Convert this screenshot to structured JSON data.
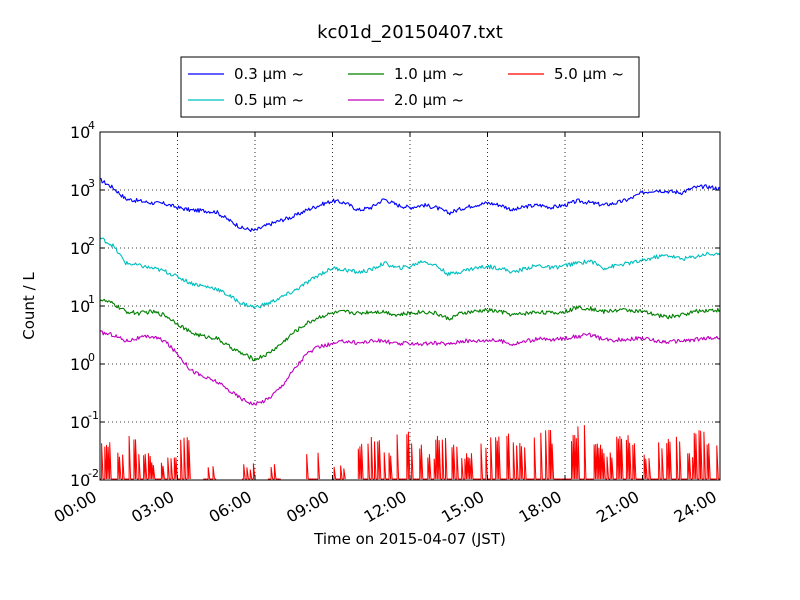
{
  "chart_data": {
    "type": "line",
    "title": "kc01d_20150407.txt",
    "xlabel": "Time on 2015-04-07 (JST)",
    "ylabel": "Count / L",
    "yscale": "log",
    "xlim": [
      0,
      24
    ],
    "ylim": [
      0.01,
      10000
    ],
    "grid": true,
    "legend_position": "top-center",
    "x_ticks": [
      {
        "value": 0,
        "label": "00:00"
      },
      {
        "value": 3,
        "label": "03:00"
      },
      {
        "value": 6,
        "label": "06:00"
      },
      {
        "value": 9,
        "label": "09:00"
      },
      {
        "value": 12,
        "label": "12:00"
      },
      {
        "value": 15,
        "label": "15:00"
      },
      {
        "value": 18,
        "label": "18:00"
      },
      {
        "value": 21,
        "label": "21:00"
      },
      {
        "value": 24,
        "label": "24:00"
      }
    ],
    "y_ticks": [
      {
        "value": 0.01,
        "base": "10",
        "exp": "-2"
      },
      {
        "value": 0.1,
        "base": "10",
        "exp": "-1"
      },
      {
        "value": 1,
        "base": "10",
        "exp": "0"
      },
      {
        "value": 10,
        "base": "10",
        "exp": "1"
      },
      {
        "value": 100,
        "base": "10",
        "exp": "2"
      },
      {
        "value": 1000,
        "base": "10",
        "exp": "3"
      },
      {
        "value": 10000,
        "base": "10",
        "exp": "4"
      }
    ],
    "x": [
      0,
      0.5,
      1,
      1.5,
      2,
      2.5,
      3,
      3.5,
      4,
      4.5,
      5,
      5.5,
      6,
      6.5,
      7,
      7.5,
      8,
      8.5,
      9,
      9.5,
      10,
      10.5,
      11,
      11.5,
      12,
      12.5,
      13,
      13.5,
      14,
      14.5,
      15,
      15.5,
      16,
      16.5,
      17,
      17.5,
      18,
      18.5,
      19,
      19.5,
      20,
      20.5,
      21,
      21.5,
      22,
      22.5,
      23,
      23.5,
      24
    ],
    "series": [
      {
        "name": "0.3 μm ~",
        "color": "#0000ff",
        "values": [
          1500,
          1100,
          700,
          650,
          600,
          580,
          500,
          450,
          440,
          420,
          300,
          220,
          200,
          250,
          300,
          350,
          450,
          550,
          650,
          600,
          450,
          500,
          700,
          550,
          500,
          550,
          500,
          400,
          480,
          550,
          600,
          550,
          450,
          520,
          550,
          500,
          550,
          650,
          600,
          550,
          600,
          700,
          900,
          1000,
          950,
          900,
          1100,
          1150,
          1050
        ]
      },
      {
        "name": "1.0 μm ~",
        "color": "#008000",
        "values": [
          13,
          11,
          8,
          7.5,
          8,
          7,
          5,
          3.5,
          3,
          2.8,
          2,
          1.5,
          1.2,
          1.5,
          2.2,
          3.5,
          5,
          6.5,
          7.5,
          8,
          7.5,
          8,
          8,
          7,
          7.5,
          8,
          7.5,
          6,
          7.5,
          8,
          8.5,
          8,
          7,
          7.5,
          8,
          7.5,
          8,
          9.5,
          9,
          8,
          8.5,
          8.5,
          8,
          7,
          6.5,
          7,
          8,
          8.5,
          8.5
        ]
      },
      {
        "name": "5.0 μm ~",
        "color": "#ff0000",
        "values": [
          0.03,
          0.02,
          0.04,
          0.02,
          0.015,
          0.02,
          0.04,
          null,
          0.013,
          null,
          null,
          0.013,
          null,
          0.013,
          null,
          null,
          0.02,
          null,
          0.013,
          null,
          0.03,
          0.04,
          0.02,
          0.05,
          0.03,
          0.02,
          0.04,
          0.03,
          0.02,
          0.03,
          0.04,
          0.05,
          0.03,
          0.04,
          0.05,
          0.03,
          0.04,
          0.06,
          0.03,
          0.02,
          0.04,
          0.03,
          0.02,
          0.03,
          0.04,
          0.02,
          0.05,
          0.03,
          0.02
        ]
      },
      {
        "name": "0.5 μm ~",
        "color": "#00bfbf",
        "values": [
          150,
          110,
          55,
          50,
          45,
          40,
          32,
          25,
          22,
          20,
          15,
          11,
          9.5,
          11,
          14,
          18,
          25,
          35,
          45,
          42,
          38,
          42,
          55,
          45,
          48,
          60,
          50,
          35,
          40,
          45,
          48,
          45,
          38,
          45,
          50,
          45,
          50,
          55,
          60,
          45,
          50,
          55,
          60,
          70,
          75,
          65,
          70,
          80,
          75
        ]
      },
      {
        "name": "2.0 μm ~",
        "color": "#bf00bf",
        "values": [
          3.5,
          3.2,
          2.5,
          2.8,
          3,
          2.5,
          1.5,
          0.8,
          0.6,
          0.5,
          0.35,
          0.25,
          0.2,
          0.25,
          0.4,
          0.8,
          1.5,
          2,
          2.2,
          2.5,
          2.3,
          2.5,
          2.5,
          2.2,
          2.3,
          2.2,
          2.3,
          2.2,
          2.5,
          2.5,
          2.6,
          2.5,
          2.2,
          2.5,
          2.7,
          2.6,
          2.8,
          3,
          3.2,
          2.6,
          2.6,
          2.7,
          2.8,
          2.5,
          2.4,
          2.5,
          2.6,
          2.8,
          2.8
        ]
      }
    ]
  }
}
